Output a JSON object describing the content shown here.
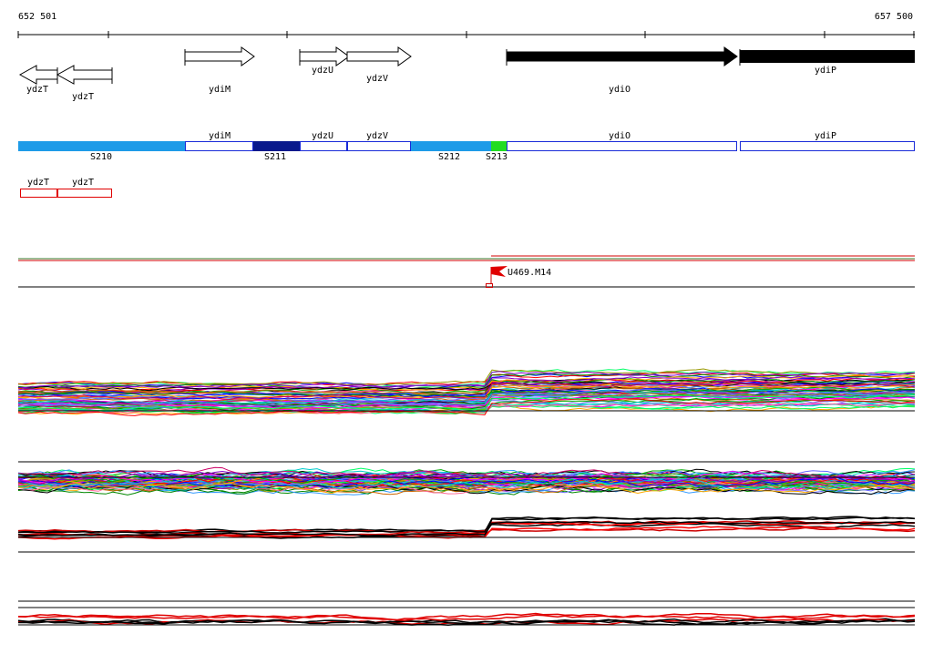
{
  "ruler": {
    "start_label": "652 501",
    "end_label": "657 500"
  },
  "genes_top": [
    {
      "id": "ydzT_a",
      "label": "ydzT",
      "strand": "-",
      "fill": "#ffffff"
    },
    {
      "id": "ydzT_b",
      "label": "ydzT",
      "strand": "-",
      "fill": "#ffffff"
    },
    {
      "id": "ydiM",
      "label": "ydiM",
      "strand": "+",
      "fill": "#ffffff"
    },
    {
      "id": "ydzU",
      "label": "ydzU",
      "strand": "+",
      "fill": "#ffffff"
    },
    {
      "id": "ydzV",
      "label": "ydzV",
      "strand": "+",
      "fill": "#ffffff"
    },
    {
      "id": "ydiO",
      "label": "ydiO",
      "strand": "+",
      "fill": "#000000"
    },
    {
      "id": "ydiP",
      "label": "ydiP",
      "strand": "+",
      "fill": "#000000"
    }
  ],
  "segments": [
    {
      "label": "S210",
      "color": "#1e9be8"
    },
    {
      "label": "S211",
      "color": "#0a1a8c"
    },
    {
      "label": "S212",
      "color": "#1e9be8"
    },
    {
      "label": "S213",
      "color": "#22dd22"
    }
  ],
  "segment_genes": [
    {
      "label": "ydiM"
    },
    {
      "label": "ydzU"
    },
    {
      "label": "ydzV"
    },
    {
      "label": "ydiO"
    },
    {
      "label": "ydiP"
    }
  ],
  "red_genes": [
    {
      "label": "ydzT"
    },
    {
      "label": "ydzT"
    }
  ],
  "marker": {
    "label": "U469.M14",
    "color": "#e00000"
  },
  "colors": {
    "segment_outline": "#1a2bd8",
    "red_box": "#e00000",
    "green_line": "#3a7a2a",
    "red_line": "#d00000"
  }
}
